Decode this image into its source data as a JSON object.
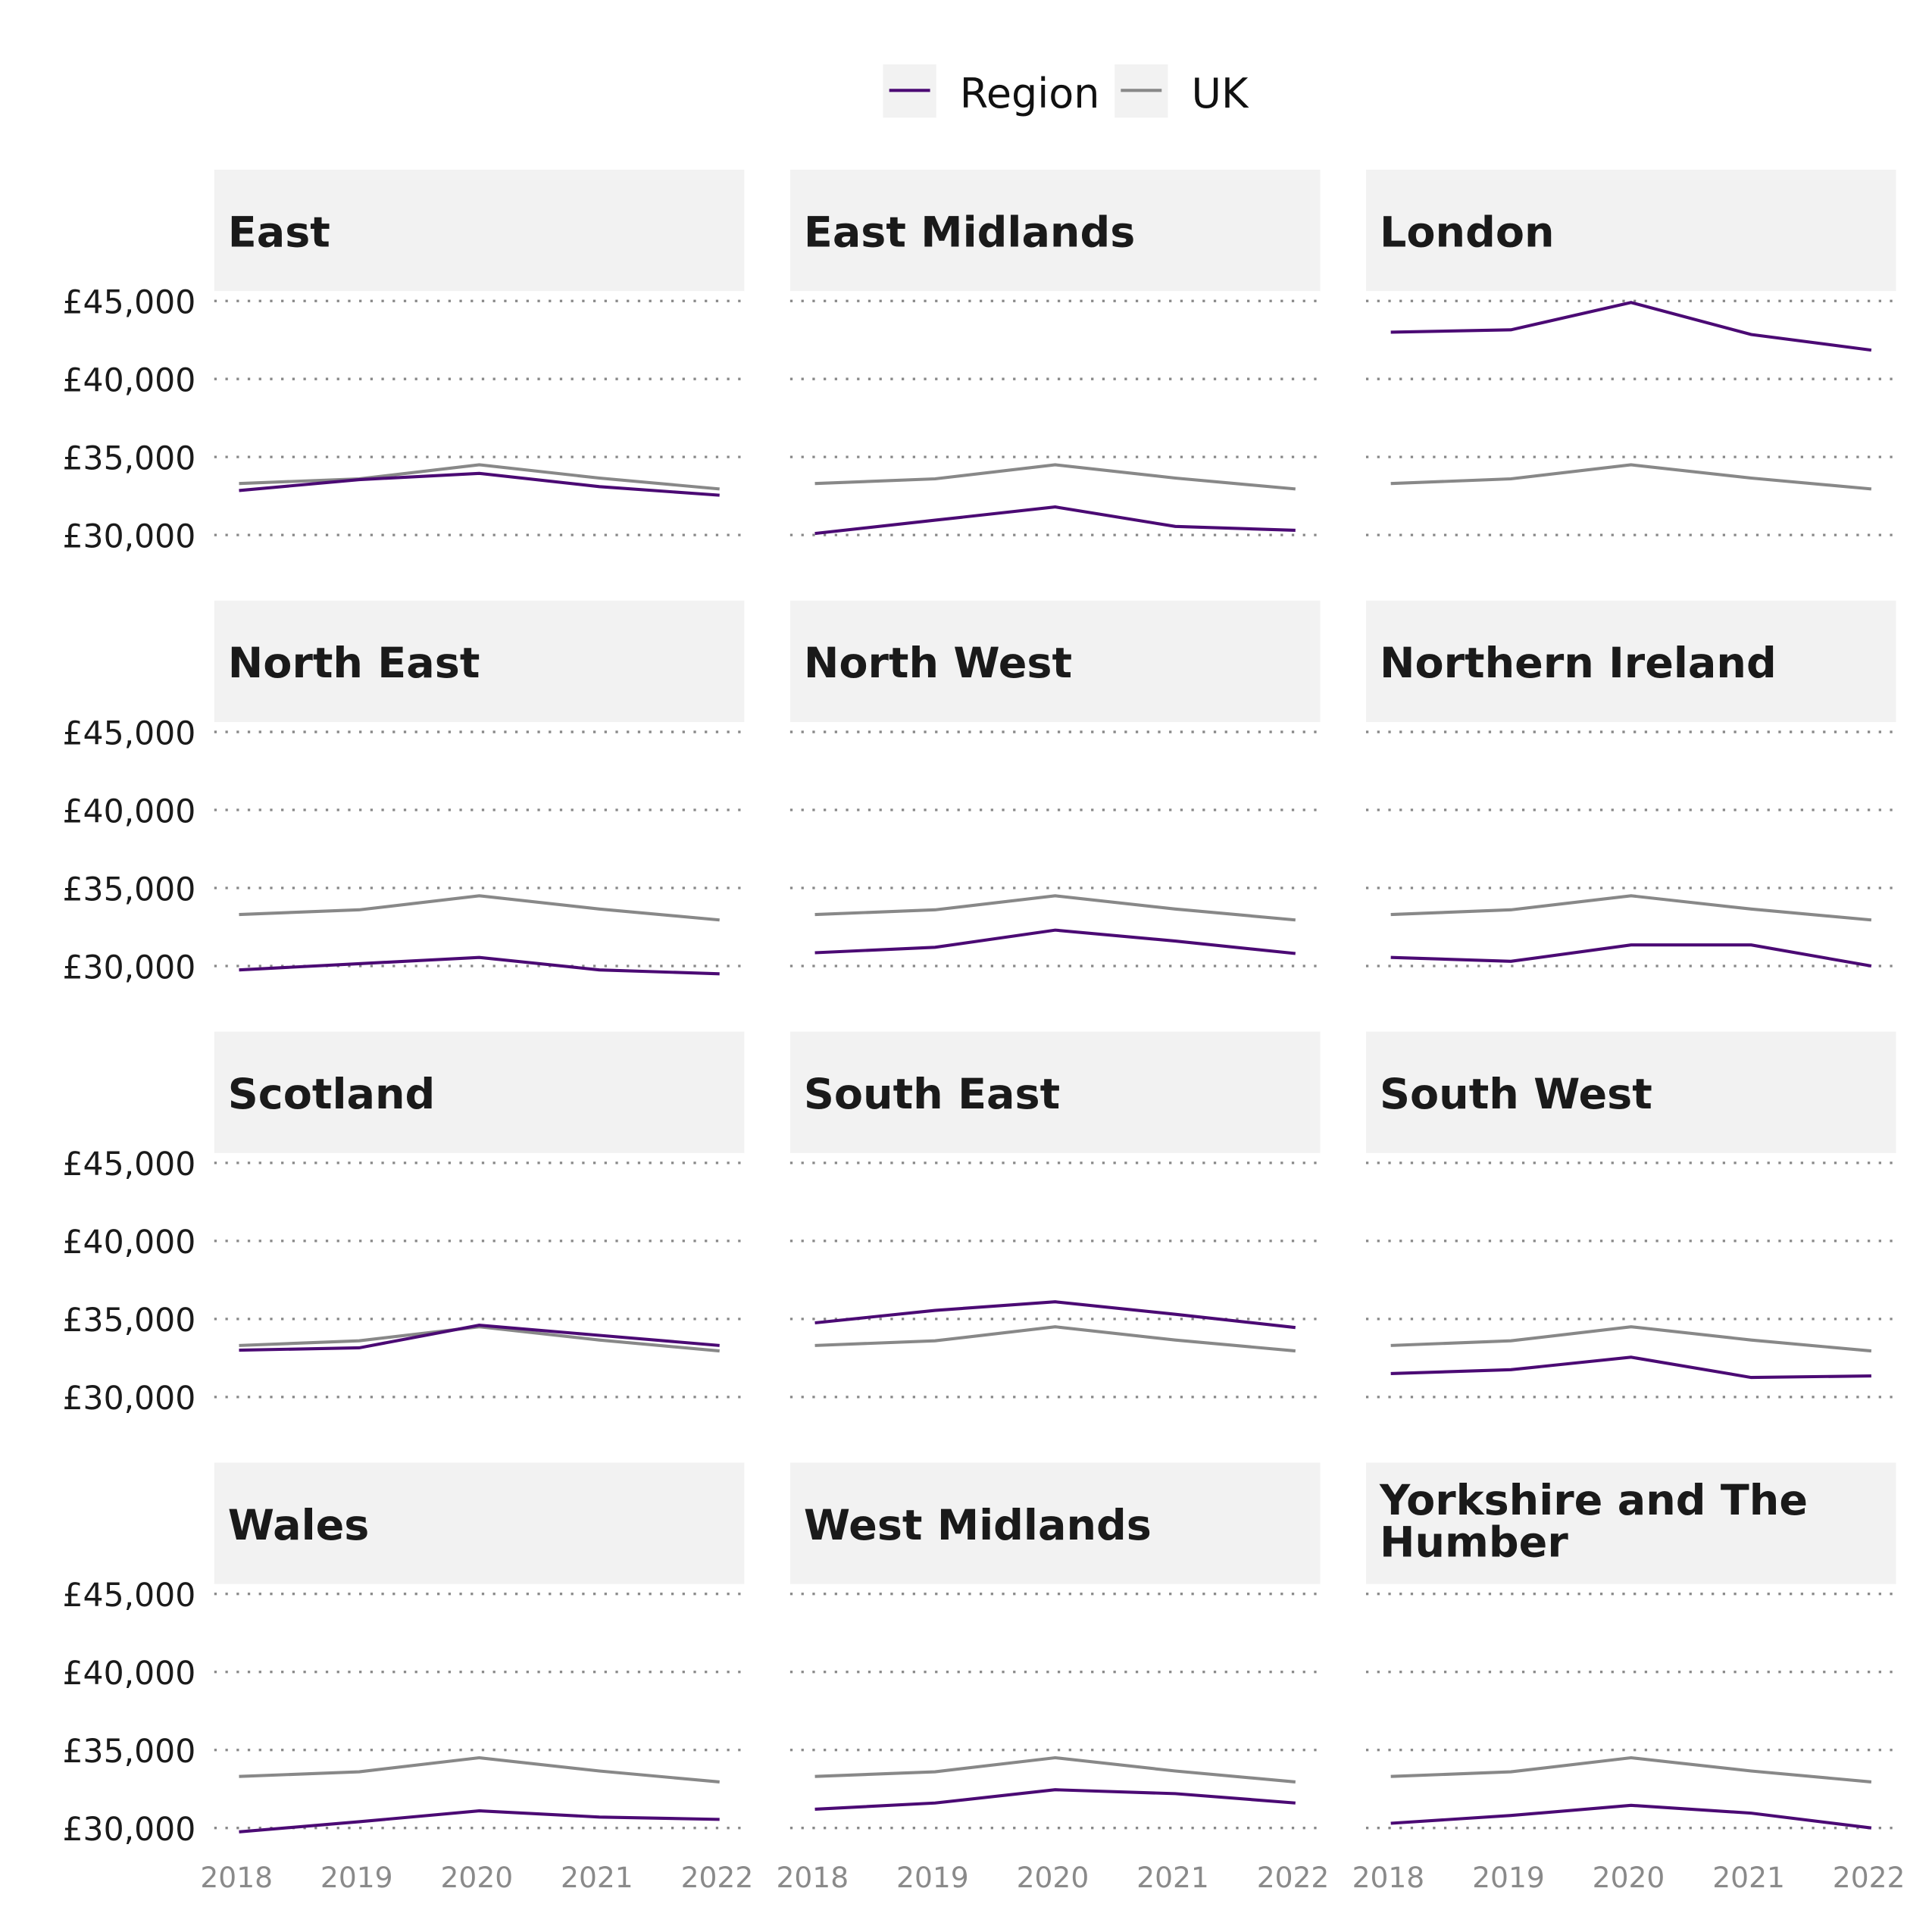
{
  "chart_data": {
    "type": "line",
    "facet": "small-multiples 4x3",
    "x": [
      2018,
      2019,
      2020,
      2021,
      2022
    ],
    "ylim": [
      30000,
      45000
    ],
    "yticks": [
      "£30,000",
      "£35,000",
      "£40,000",
      "£45,000"
    ],
    "ytick_values": [
      30000,
      35000,
      40000,
      45000
    ],
    "xticks": [
      "2018",
      "2019",
      "2020",
      "2021",
      "2022"
    ],
    "grid": "horizontal dotted",
    "legend": {
      "placement": "top",
      "entries": [
        "Region",
        "UK"
      ]
    },
    "colors": {
      "Region": "#4b0a74",
      "UK": "#888888",
      "strip": "#f2f2f2"
    },
    "uk": [
      33300,
      33600,
      34500,
      33650,
      32950
    ],
    "panels": [
      {
        "title": "East",
        "values": [
          32850,
          33550,
          33950,
          33100,
          32550
        ]
      },
      {
        "title": "East Midlands",
        "values": [
          30100,
          30950,
          31800,
          30550,
          30300
        ]
      },
      {
        "title": "London",
        "values": [
          43000,
          43150,
          44900,
          42850,
          41850
        ]
      },
      {
        "title": "North East",
        "values": [
          29750,
          30150,
          30550,
          29750,
          29500
        ]
      },
      {
        "title": "North West",
        "values": [
          30850,
          31200,
          32300,
          31600,
          30800
        ]
      },
      {
        "title": "Northern Ireland",
        "values": [
          30550,
          30300,
          31350,
          31350,
          30000
        ]
      },
      {
        "title": "Scotland",
        "values": [
          33000,
          33150,
          34600,
          33950,
          33300
        ]
      },
      {
        "title": "South East",
        "values": [
          34750,
          35550,
          36100,
          35300,
          34450
        ]
      },
      {
        "title": "South West",
        "values": [
          31500,
          31750,
          32550,
          31250,
          31350
        ]
      },
      {
        "title": "Wales",
        "values": [
          29750,
          30400,
          31100,
          30700,
          30550
        ]
      },
      {
        "title": "West Midlands",
        "values": [
          31200,
          31600,
          32450,
          32200,
          31600
        ]
      },
      {
        "title": "Yorkshire and The Humber",
        "values": [
          30300,
          30800,
          31450,
          30950,
          30000
        ]
      }
    ]
  }
}
